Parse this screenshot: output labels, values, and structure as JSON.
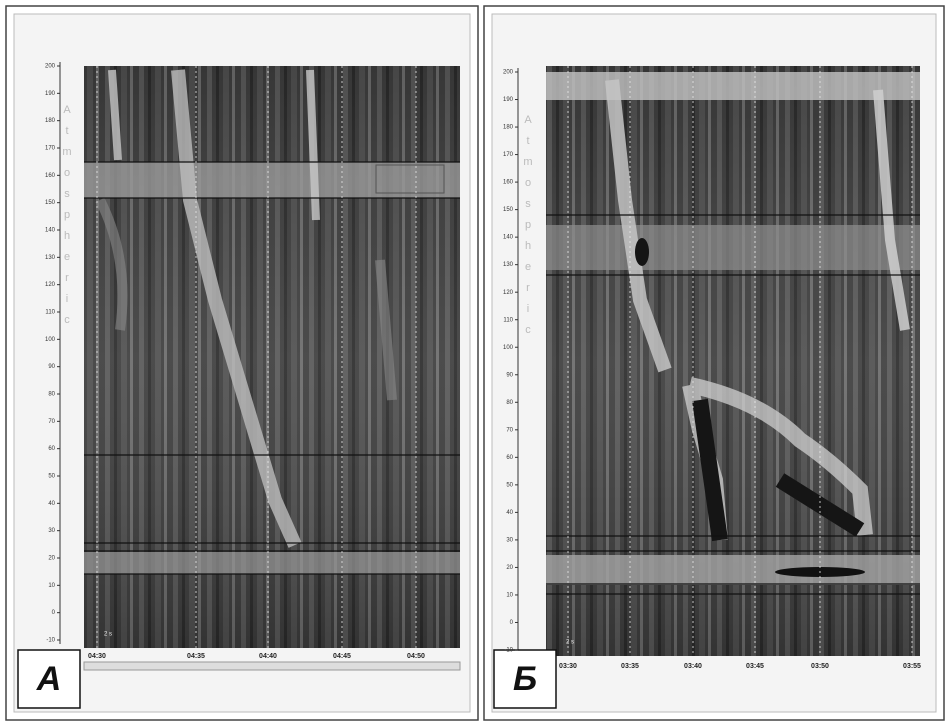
{
  "panels": [
    {
      "label": "А",
      "axis_title": "Atmospheric",
      "y_ticks": [
        "200",
        "190",
        "180",
        "170",
        "160",
        "150",
        "140",
        "130",
        "120",
        "110",
        "100",
        "90",
        "80",
        "70",
        "60",
        "50",
        "40",
        "30",
        "20",
        "10",
        "0",
        "-10"
      ],
      "x_ticks": [
        "04:30",
        "04:35",
        "04:40",
        "04:45",
        "04:50"
      ],
      "scale_note": "2 s"
    },
    {
      "label": "Б",
      "axis_title": "Atmospheric",
      "y_ticks": [
        "200",
        "190",
        "180",
        "170",
        "160",
        "150",
        "140",
        "130",
        "120",
        "110",
        "100",
        "90",
        "80",
        "70",
        "60",
        "50",
        "40",
        "30",
        "20",
        "10",
        "0",
        "-10"
      ],
      "x_ticks": [
        "03:30",
        "03:35",
        "03:40",
        "03:45",
        "03:50",
        "03:55"
      ],
      "scale_note": "2 s"
    }
  ]
}
